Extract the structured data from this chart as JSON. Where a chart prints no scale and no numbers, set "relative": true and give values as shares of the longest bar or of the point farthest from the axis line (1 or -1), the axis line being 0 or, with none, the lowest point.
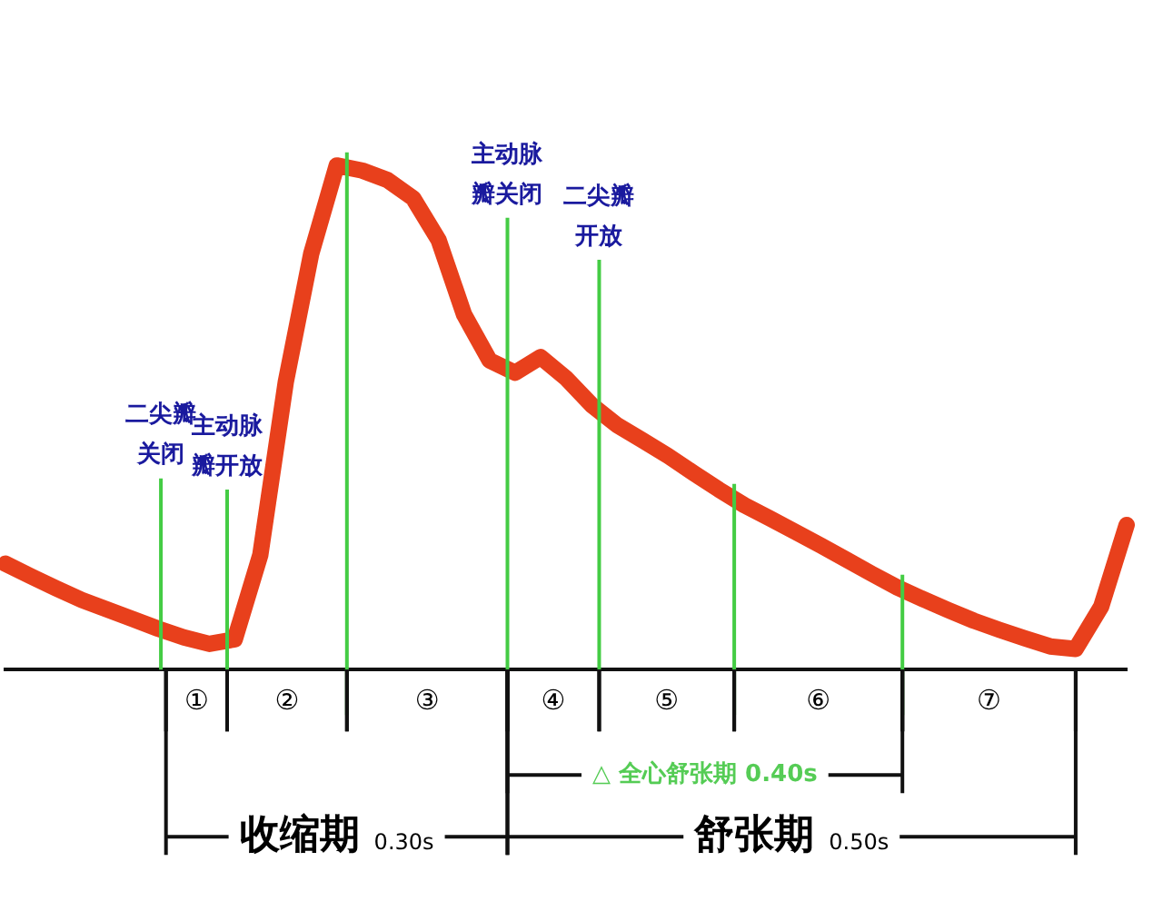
{
  "chart_data": {
    "type": "line",
    "relative": true,
    "grid": false,
    "legend": false,
    "marker": "none",
    "line_style": "solid",
    "categories": [
      null,
      null,
      null,
      null,
      null,
      null,
      null,
      null,
      null,
      null,
      null,
      null,
      null,
      null,
      null,
      null,
      null,
      null,
      null,
      null,
      null,
      null,
      null,
      null,
      null,
      null,
      null,
      null,
      null,
      null,
      null,
      null,
      null,
      null,
      null,
      null,
      null,
      null,
      null,
      null,
      null,
      null,
      null,
      null,
      null
    ],
    "series": [
      {
        "color": "#e8401c",
        "values": [
          0.21,
          0.185,
          0.161,
          0.138,
          0.119,
          0.1,
          0.081,
          0.064,
          0.051,
          0.06,
          0.227,
          0.57,
          0.825,
          1.0,
          0.99,
          0.971,
          0.935,
          0.852,
          0.704,
          0.613,
          0.589,
          0.62,
          0.578,
          0.525,
          0.485,
          0.455,
          0.424,
          0.39,
          0.357,
          0.326,
          0.3,
          0.273,
          0.246,
          0.218,
          0.19,
          0.163,
          0.14,
          0.118,
          0.097,
          0.079,
          0.062,
          0.046,
          0.041,
          0.125,
          0.287
        ]
      }
    ],
    "annotations": [
      "二尖瓣关闭",
      "主动脉瓣开放",
      "主动脉瓣关闭",
      "二尖瓣开放",
      "①",
      "②",
      "③",
      "④",
      "⑤",
      "⑥",
      "⑦",
      "△ 全心舒张期 0.40s",
      "收缩期 0.30s",
      "舒张期 0.50s"
    ]
  }
}
